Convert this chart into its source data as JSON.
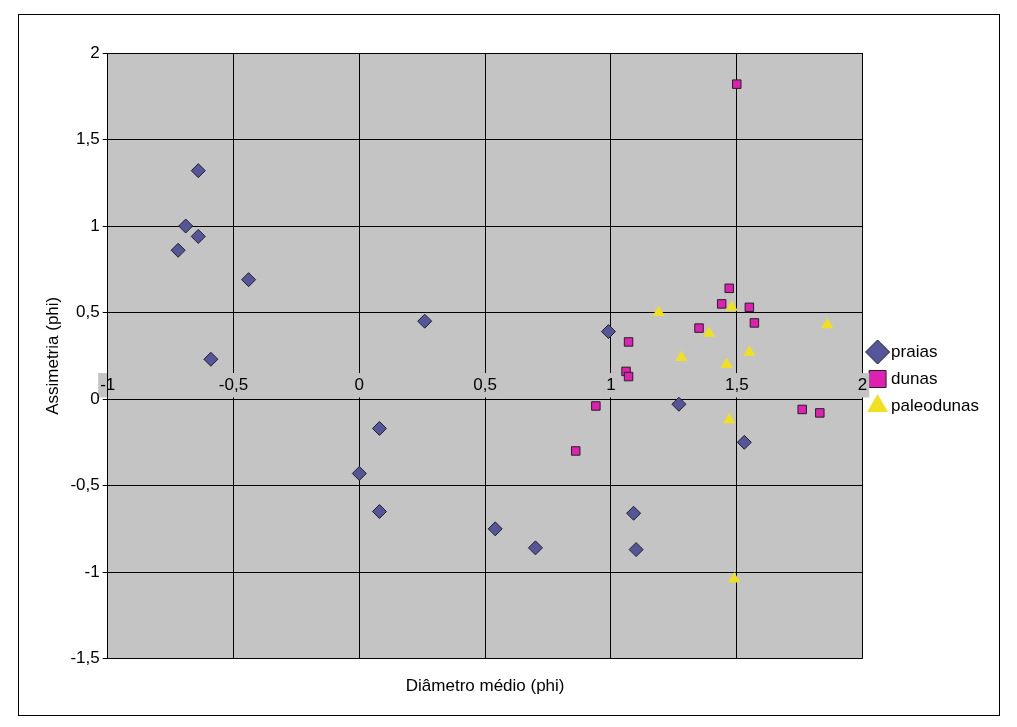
{
  "chart_data": {
    "type": "scatter",
    "xlabel": "Diâmetro médio (phi)",
    "ylabel": "Assimetria (phi)",
    "xlim": [
      -1,
      2
    ],
    "xticks": [
      {
        "value": -1,
        "label": "-1"
      },
      {
        "value": -0.5,
        "label": "-0,5"
      },
      {
        "value": 0,
        "label": "0"
      },
      {
        "value": 0.5,
        "label": "0,5"
      },
      {
        "value": 1,
        "label": "1"
      },
      {
        "value": 1.5,
        "label": "1,5"
      },
      {
        "value": 2,
        "label": "2"
      }
    ],
    "ylim": [
      -1.5,
      2
    ],
    "yticks": [
      {
        "value": -1.5,
        "label": "-1,5"
      },
      {
        "value": -1,
        "label": "-1"
      },
      {
        "value": -0.5,
        "label": "-0,5"
      },
      {
        "value": 0,
        "label": "0"
      },
      {
        "value": 0.5,
        "label": "0,5"
      },
      {
        "value": 1,
        "label": "1"
      },
      {
        "value": 1.5,
        "label": "1,5"
      },
      {
        "value": 2,
        "label": "2"
      }
    ],
    "grid": true,
    "legend": "right",
    "series": [
      {
        "name": "praias",
        "color": "#55559a",
        "marker": "diamond",
        "x": [
          -0.64,
          -0.69,
          -0.64,
          -0.72,
          -0.44,
          0.26,
          -0.59,
          0.99,
          1.27,
          0.08,
          0,
          0.08,
          0.54,
          0.7,
          1.09,
          1.1,
          1.53
        ],
        "values": [
          1.32,
          1.0,
          0.94,
          0.86,
          0.69,
          0.45,
          0.23,
          0.39,
          -0.03,
          -0.17,
          -0.43,
          -0.65,
          -0.75,
          -0.86,
          -0.66,
          -0.87,
          -0.25
        ]
      },
      {
        "name": "dunas",
        "color": "#e020b0",
        "marker": "square",
        "x": [
          1.5,
          1.47,
          1.44,
          1.55,
          1.57,
          1.35,
          1.07,
          1.06,
          1.07,
          0.94,
          0.86,
          1.76,
          1.83
        ],
        "values": [
          1.82,
          0.64,
          0.55,
          0.53,
          0.44,
          0.41,
          0.33,
          0.16,
          0.13,
          -0.04,
          -0.3,
          -0.06,
          -0.08
        ]
      },
      {
        "name": "paleodunas",
        "color": "#f0e020",
        "marker": "triangle",
        "x": [
          1.19,
          1.48,
          1.39,
          1.86,
          1.28,
          1.55,
          1.46,
          1.47,
          1.49
        ],
        "values": [
          0.5,
          0.53,
          0.38,
          0.43,
          0.24,
          0.27,
          0.2,
          -0.12,
          -1.04
        ]
      }
    ]
  }
}
